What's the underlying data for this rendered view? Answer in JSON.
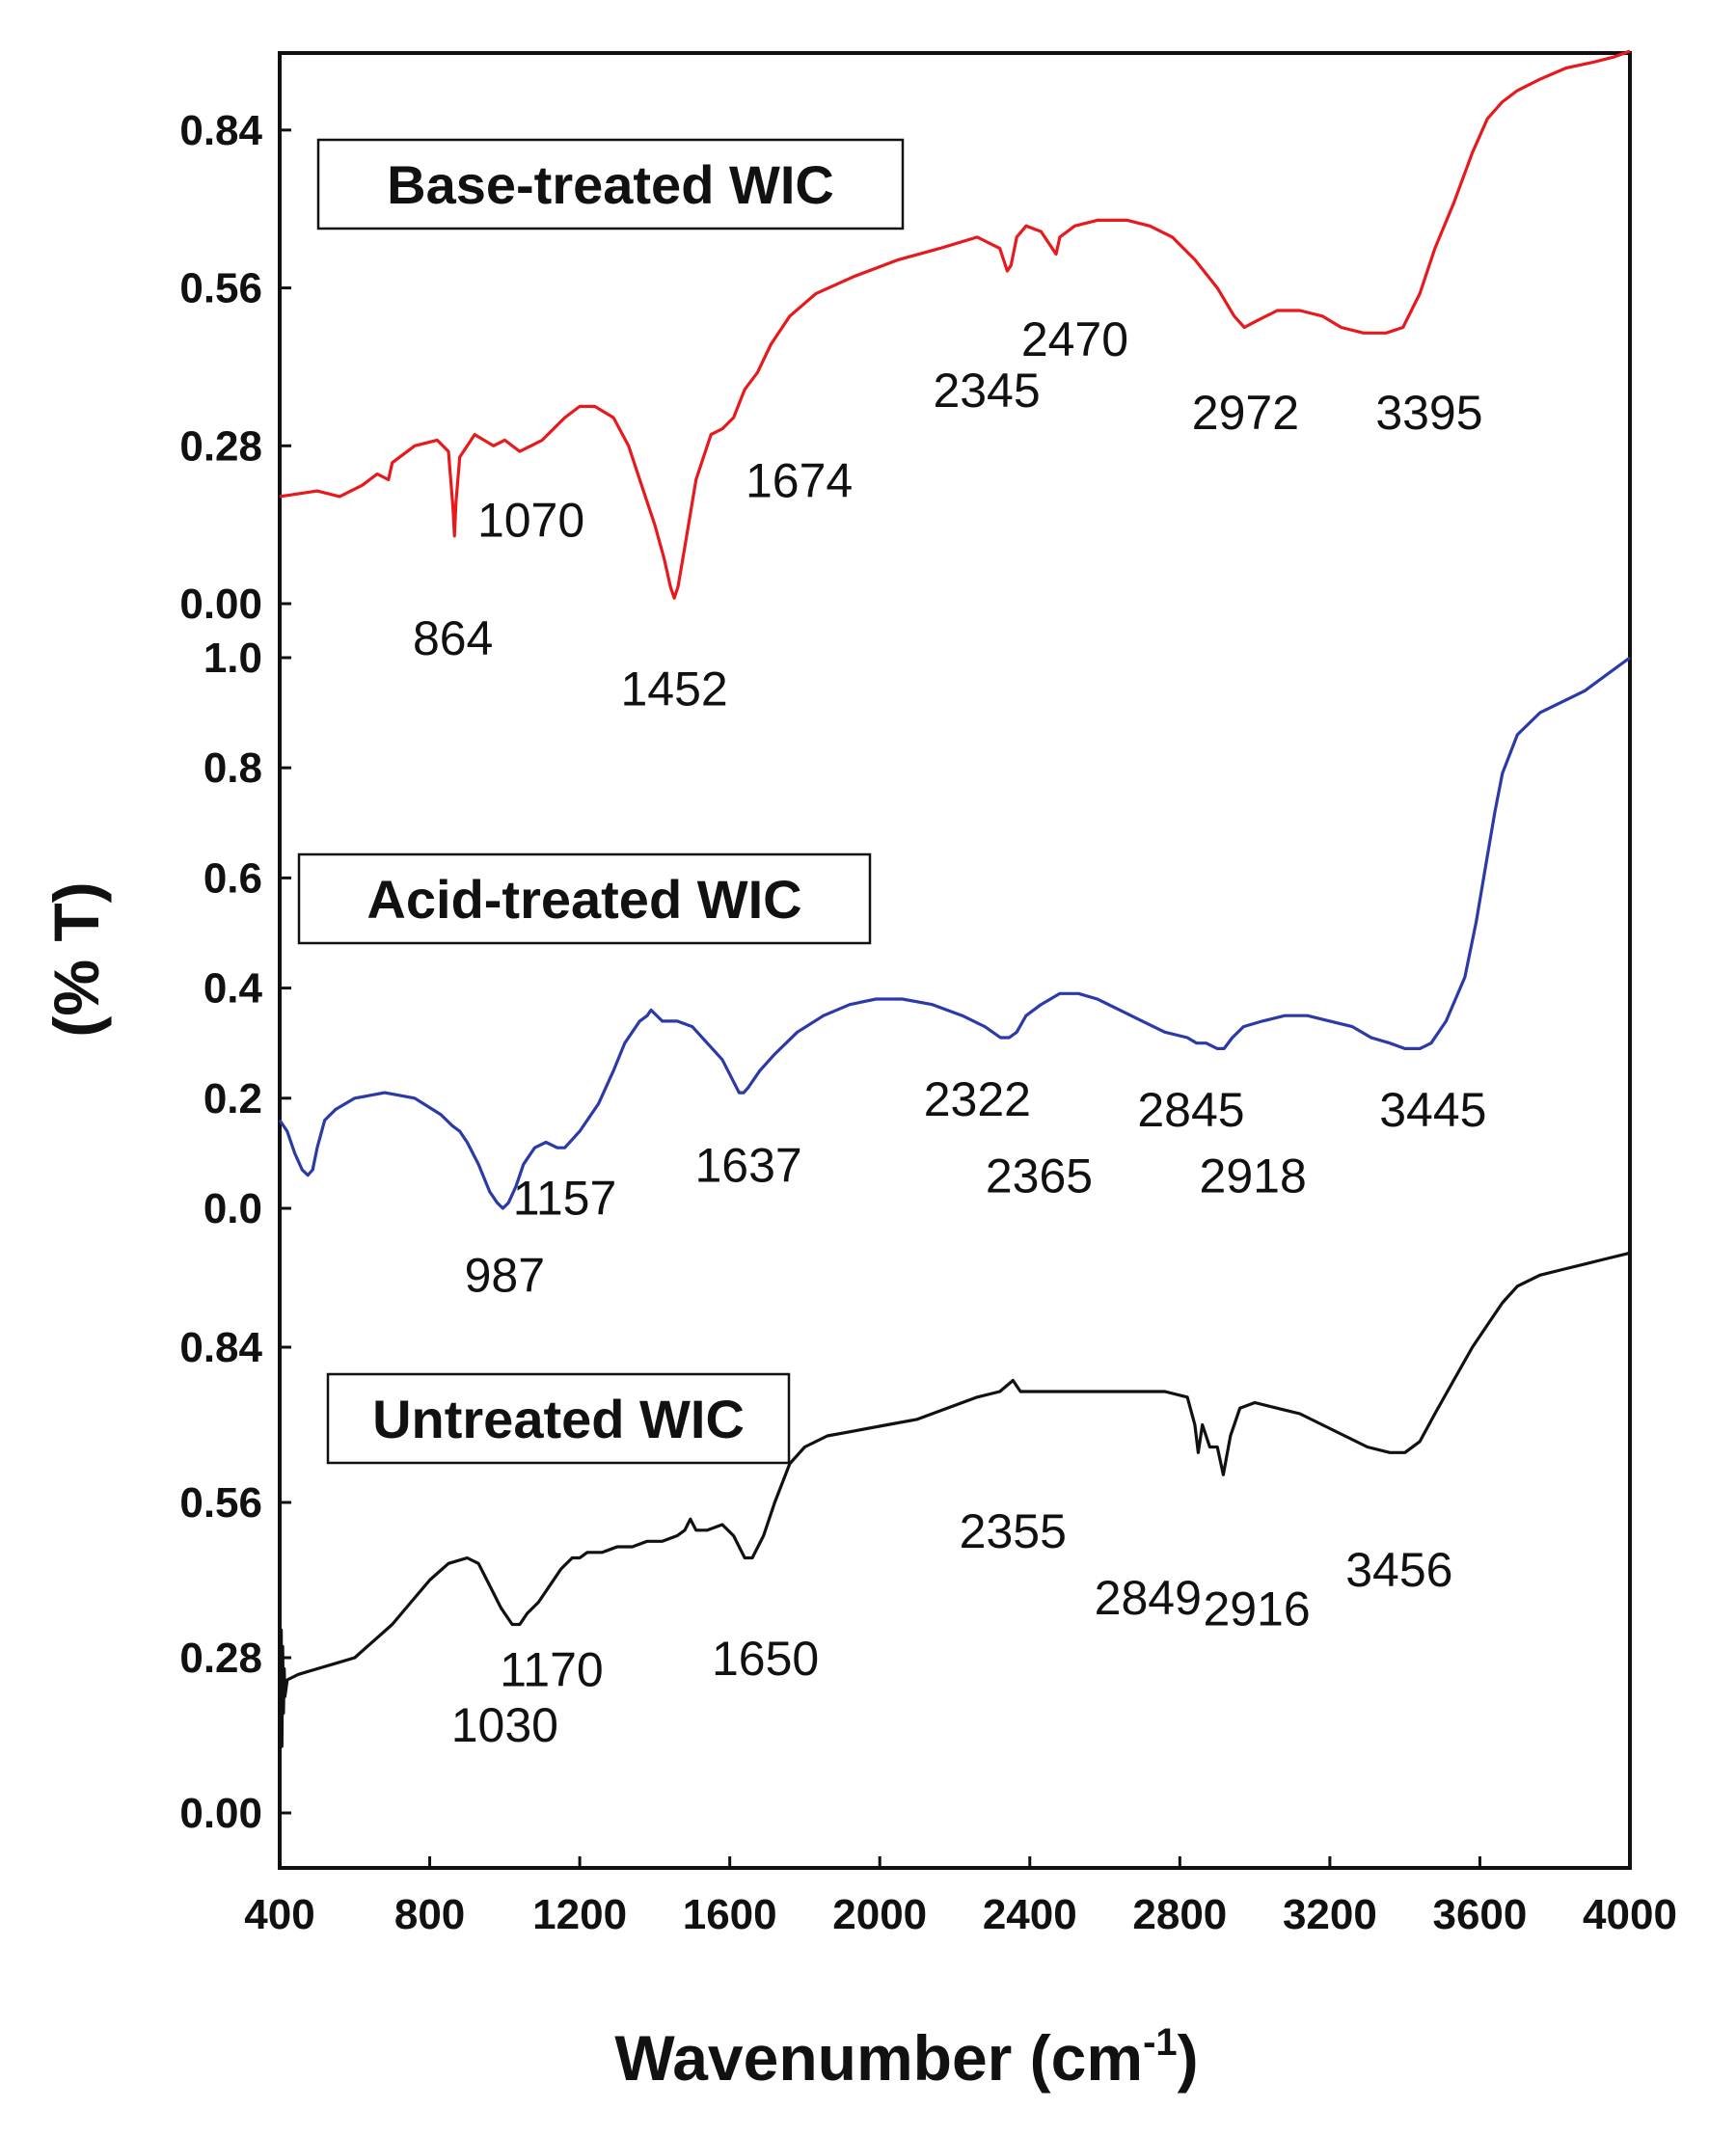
{
  "chart_data": {
    "type": "line",
    "xlabel": "Wavenumber (cm",
    "xlabel_sup": "-1",
    "xlabel_close": ")",
    "ylabel": "(% T)",
    "xlim": [
      400,
      4000
    ],
    "x_ticks": [
      "400",
      "800",
      "1200",
      "1600",
      "2000",
      "2400",
      "2800",
      "3200",
      "3600",
      "4000"
    ],
    "grid": false,
    "panels": [
      {
        "name": "Base-treated WIC",
        "color": "#e8191c",
        "ylim": [
          0,
          0.98
        ],
        "y_ticks": [
          {
            "value": 0.0,
            "label": "0.00"
          },
          {
            "value": 0.28,
            "label": "0.28"
          },
          {
            "value": 0.56,
            "label": "0.56"
          },
          {
            "value": 0.84,
            "label": "0.84"
          }
        ],
        "x": [
          400,
          500,
          560,
          620,
          660,
          690,
          700,
          760,
          820,
          850,
          862,
          866,
          870,
          880,
          920,
          970,
          1000,
          1040,
          1070,
          1100,
          1130,
          1160,
          1200,
          1240,
          1290,
          1330,
          1370,
          1400,
          1425,
          1442,
          1452,
          1462,
          1480,
          1510,
          1550,
          1580,
          1610,
          1640,
          1674,
          1710,
          1760,
          1830,
          1930,
          2050,
          2160,
          2260,
          2320,
          2340,
          2350,
          2365,
          2390,
          2430,
          2460,
          2470,
          2480,
          2520,
          2580,
          2660,
          2720,
          2780,
          2840,
          2900,
          2945,
          2972,
          3000,
          3060,
          3120,
          3180,
          3230,
          3290,
          3350,
          3395,
          3440,
          3480,
          3530,
          3580,
          3620,
          3660,
          3700,
          3760,
          3830,
          3900,
          3960,
          4000
        ],
        "y": [
          0.19,
          0.2,
          0.19,
          0.21,
          0.23,
          0.22,
          0.25,
          0.28,
          0.29,
          0.27,
          0.17,
          0.12,
          0.18,
          0.26,
          0.3,
          0.28,
          0.29,
          0.27,
          0.28,
          0.29,
          0.31,
          0.33,
          0.35,
          0.35,
          0.33,
          0.28,
          0.2,
          0.14,
          0.08,
          0.03,
          0.01,
          0.03,
          0.1,
          0.22,
          0.3,
          0.31,
          0.33,
          0.38,
          0.41,
          0.46,
          0.51,
          0.55,
          0.58,
          0.61,
          0.63,
          0.65,
          0.63,
          0.59,
          0.6,
          0.65,
          0.67,
          0.66,
          0.63,
          0.62,
          0.65,
          0.67,
          0.68,
          0.68,
          0.67,
          0.65,
          0.61,
          0.56,
          0.51,
          0.49,
          0.5,
          0.52,
          0.52,
          0.51,
          0.49,
          0.48,
          0.48,
          0.49,
          0.55,
          0.63,
          0.71,
          0.8,
          0.86,
          0.89,
          0.91,
          0.93,
          0.95,
          0.96,
          0.97,
          0.98
        ],
        "annotations": [
          {
            "text": "864",
            "x": 862,
            "y": -0.06
          },
          {
            "text": "1070",
            "x": 1070,
            "y": 0.15
          },
          {
            "text": "1452",
            "x": 1452,
            "y": -0.15
          },
          {
            "text": "1674",
            "x": 1785,
            "y": 0.22
          },
          {
            "text": "2345",
            "x": 2285,
            "y": 0.38
          },
          {
            "text": "2470",
            "x": 2520,
            "y": 0.47
          },
          {
            "text": "2972",
            "x": 2975,
            "y": 0.34
          },
          {
            "text": "3395",
            "x": 3465,
            "y": 0.34
          }
        ]
      },
      {
        "name": "Acid-treated WIC",
        "color": "#2b3aa8",
        "ylim": [
          0,
          1.0
        ],
        "y_ticks": [
          {
            "value": 0.0,
            "label": "0.0"
          },
          {
            "value": 0.2,
            "label": "0.2"
          },
          {
            "value": 0.4,
            "label": "0.4"
          },
          {
            "value": 0.6,
            "label": "0.6"
          },
          {
            "value": 0.8,
            "label": "0.8"
          },
          {
            "value": 1.0,
            "label": "1.0"
          }
        ],
        "x": [
          400,
          420,
          440,
          460,
          475,
          488,
          500,
          520,
          550,
          600,
          680,
          760,
          830,
          860,
          880,
          900,
          930,
          960,
          980,
          995,
          1010,
          1030,
          1050,
          1080,
          1110,
          1140,
          1160,
          1200,
          1250,
          1290,
          1320,
          1360,
          1380,
          1390,
          1420,
          1460,
          1500,
          1540,
          1580,
          1610,
          1625,
          1637,
          1650,
          1680,
          1720,
          1780,
          1850,
          1920,
          1990,
          2060,
          2140,
          2220,
          2280,
          2322,
          2345,
          2365,
          2390,
          2430,
          2480,
          2530,
          2580,
          2640,
          2700,
          2760,
          2820,
          2845,
          2870,
          2900,
          2918,
          2940,
          2970,
          3020,
          3080,
          3140,
          3200,
          3260,
          3310,
          3360,
          3400,
          3440,
          3470,
          3510,
          3560,
          3590,
          3620,
          3640,
          3660,
          3700,
          3760,
          3820,
          3880,
          3940,
          4000
        ],
        "y": [
          0.16,
          0.14,
          0.1,
          0.07,
          0.06,
          0.07,
          0.11,
          0.16,
          0.18,
          0.2,
          0.21,
          0.2,
          0.17,
          0.15,
          0.14,
          0.12,
          0.08,
          0.03,
          0.01,
          0.0,
          0.01,
          0.04,
          0.08,
          0.11,
          0.12,
          0.11,
          0.11,
          0.14,
          0.19,
          0.25,
          0.3,
          0.34,
          0.35,
          0.36,
          0.34,
          0.34,
          0.33,
          0.3,
          0.27,
          0.23,
          0.21,
          0.21,
          0.22,
          0.25,
          0.28,
          0.32,
          0.35,
          0.37,
          0.38,
          0.38,
          0.37,
          0.35,
          0.33,
          0.31,
          0.31,
          0.32,
          0.35,
          0.37,
          0.39,
          0.39,
          0.38,
          0.36,
          0.34,
          0.32,
          0.31,
          0.3,
          0.3,
          0.29,
          0.29,
          0.31,
          0.33,
          0.34,
          0.35,
          0.35,
          0.34,
          0.33,
          0.31,
          0.3,
          0.29,
          0.29,
          0.3,
          0.34,
          0.42,
          0.52,
          0.64,
          0.72,
          0.79,
          0.86,
          0.9,
          0.92,
          0.94,
          0.97,
          1.0
        ],
        "annotations": [
          {
            "text": "987",
            "x": 1000,
            "y": -0.12
          },
          {
            "text": "1157",
            "x": 1160,
            "y": 0.02
          },
          {
            "text": "1637",
            "x": 1650,
            "y": 0.08
          },
          {
            "text": "2322",
            "x": 2260,
            "y": 0.2
          },
          {
            "text": "2365",
            "x": 2425,
            "y": 0.06
          },
          {
            "text": "2845",
            "x": 2830,
            "y": 0.18
          },
          {
            "text": "2918",
            "x": 2995,
            "y": 0.06
          },
          {
            "text": "3445",
            "x": 3475,
            "y": 0.18
          }
        ]
      },
      {
        "name": "Untreated WIC",
        "color": "#111111",
        "ylim": [
          0,
          1.0
        ],
        "y_ticks": [
          {
            "value": 0.0,
            "label": "0.00"
          },
          {
            "value": 0.28,
            "label": "0.28"
          },
          {
            "value": 0.56,
            "label": "0.56"
          },
          {
            "value": 0.84,
            "label": "0.84"
          }
        ],
        "x": [
          400,
          404,
          406,
          408,
          410,
          412,
          414,
          420,
          450,
          500,
          550,
          600,
          650,
          700,
          750,
          800,
          850,
          900,
          930,
          960,
          990,
          1020,
          1040,
          1060,
          1090,
          1120,
          1150,
          1180,
          1200,
          1220,
          1260,
          1300,
          1340,
          1380,
          1420,
          1460,
          1480,
          1495,
          1510,
          1540,
          1580,
          1610,
          1640,
          1660,
          1690,
          1720,
          1760,
          1800,
          1860,
          1940,
          2020,
          2100,
          2180,
          2260,
          2320,
          2355,
          2375,
          2400,
          2460,
          2540,
          2620,
          2700,
          2760,
          2820,
          2840,
          2849,
          2860,
          2880,
          2900,
          2916,
          2935,
          2960,
          3000,
          3060,
          3120,
          3180,
          3240,
          3300,
          3360,
          3400,
          3440,
          3480,
          3530,
          3580,
          3620,
          3660,
          3700,
          3760,
          3820,
          3880,
          3940,
          4000
        ],
        "y": [
          0.05,
          0.33,
          0.12,
          0.3,
          0.18,
          0.26,
          0.21,
          0.24,
          0.25,
          0.26,
          0.27,
          0.28,
          0.31,
          0.34,
          0.38,
          0.42,
          0.45,
          0.46,
          0.45,
          0.41,
          0.37,
          0.34,
          0.34,
          0.36,
          0.38,
          0.41,
          0.44,
          0.46,
          0.46,
          0.47,
          0.47,
          0.48,
          0.48,
          0.49,
          0.49,
          0.5,
          0.51,
          0.53,
          0.51,
          0.51,
          0.52,
          0.5,
          0.46,
          0.46,
          0.5,
          0.56,
          0.63,
          0.66,
          0.68,
          0.69,
          0.7,
          0.71,
          0.73,
          0.75,
          0.76,
          0.78,
          0.76,
          0.76,
          0.76,
          0.76,
          0.76,
          0.76,
          0.76,
          0.75,
          0.7,
          0.65,
          0.7,
          0.66,
          0.66,
          0.61,
          0.68,
          0.73,
          0.74,
          0.73,
          0.72,
          0.7,
          0.68,
          0.66,
          0.65,
          0.65,
          0.67,
          0.72,
          0.78,
          0.84,
          0.88,
          0.92,
          0.95,
          0.97,
          0.98,
          0.99,
          1.0,
          1.01
        ],
        "annotations": [
          {
            "text": "1030",
            "x": 1000,
            "y": 0.16
          },
          {
            "text": "1170",
            "x": 1125,
            "y": 0.26
          },
          {
            "text": "1650",
            "x": 1695,
            "y": 0.28
          },
          {
            "text": "2355",
            "x": 2355,
            "y": 0.51
          },
          {
            "text": "2849",
            "x": 2715,
            "y": 0.39
          },
          {
            "text": "2916",
            "x": 3005,
            "y": 0.37
          },
          {
            "text": "3456",
            "x": 3385,
            "y": 0.44
          }
        ]
      }
    ]
  }
}
